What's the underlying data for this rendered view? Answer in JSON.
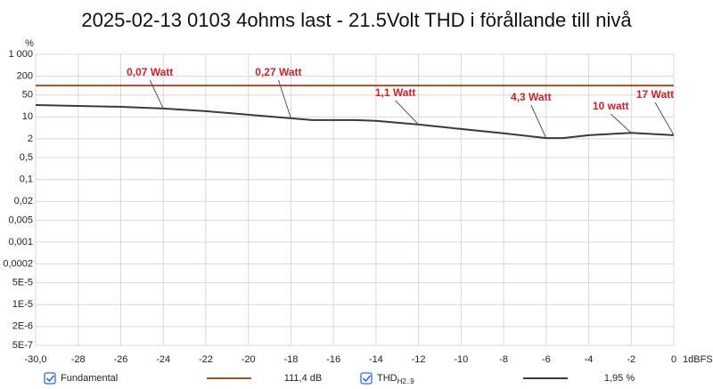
{
  "chart_data": {
    "type": "line",
    "title": "2025-02-13 0103 4ohms last - 21.5Volt THD i förållande till nivå",
    "y_label": "%",
    "x_label": "1dBFS",
    "log_y": true,
    "grid": true,
    "xlim": [
      -30,
      0
    ],
    "xticks": [
      {
        "value": -30,
        "label": "-30,0"
      },
      -28,
      -26,
      -24,
      -22,
      -20,
      -18,
      -16,
      -14,
      -12,
      -10,
      -8,
      -6,
      -4,
      -2,
      0
    ],
    "ylim": [
      5e-07,
      1000
    ],
    "yticks": [
      {
        "value": 1000,
        "label": "1 000"
      },
      200,
      50,
      10,
      2,
      {
        "value": 0.5,
        "label": "0,5"
      },
      {
        "value": 0.1,
        "label": "0,1"
      },
      {
        "value": 0.02,
        "label": "0,02"
      },
      {
        "value": 0.005,
        "label": "0,005"
      },
      {
        "value": 0.001,
        "label": "0,001"
      },
      {
        "value": 0.0002,
        "label": "0,0002"
      },
      {
        "value": 5e-05,
        "label": "5E-5"
      },
      {
        "value": 1e-05,
        "label": "1E-5"
      },
      {
        "value": 2e-06,
        "label": "2E-6"
      },
      {
        "value": 5e-07,
        "label": "5E-7"
      }
    ],
    "series": [
      {
        "name": "Fundamental",
        "color": "#a0522d",
        "x": [
          -30,
          0
        ],
        "values": [
          100,
          100
        ],
        "legend_value": "111,4 dB"
      },
      {
        "name": "THD",
        "name_sub": "H2..9",
        "color": "#3a3a3a",
        "x": [
          -30,
          -26,
          -24,
          -22,
          -20,
          -18,
          -17,
          -15,
          -14,
          -12,
          -10,
          -8,
          -6,
          -5.2,
          -4,
          -2,
          0
        ],
        "values": [
          24,
          21,
          18.5,
          15.3,
          11.7,
          9.0,
          7.9,
          7.9,
          7.5,
          5.7,
          4.1,
          3.0,
          2.1,
          2.1,
          2.6,
          3.1,
          2.6
        ],
        "legend_value": "1,95 %"
      }
    ],
    "annotations": [
      {
        "text": "0,07 Watt",
        "x": -24
      },
      {
        "text": "0,27 Watt",
        "x": -18
      },
      {
        "text": "1,1 Watt",
        "x": -12
      },
      {
        "text": "4,3 Watt",
        "x": -6
      },
      {
        "text": "10 watt",
        "x": -2
      },
      {
        "text": "17 Watt",
        "x": 0
      }
    ]
  }
}
